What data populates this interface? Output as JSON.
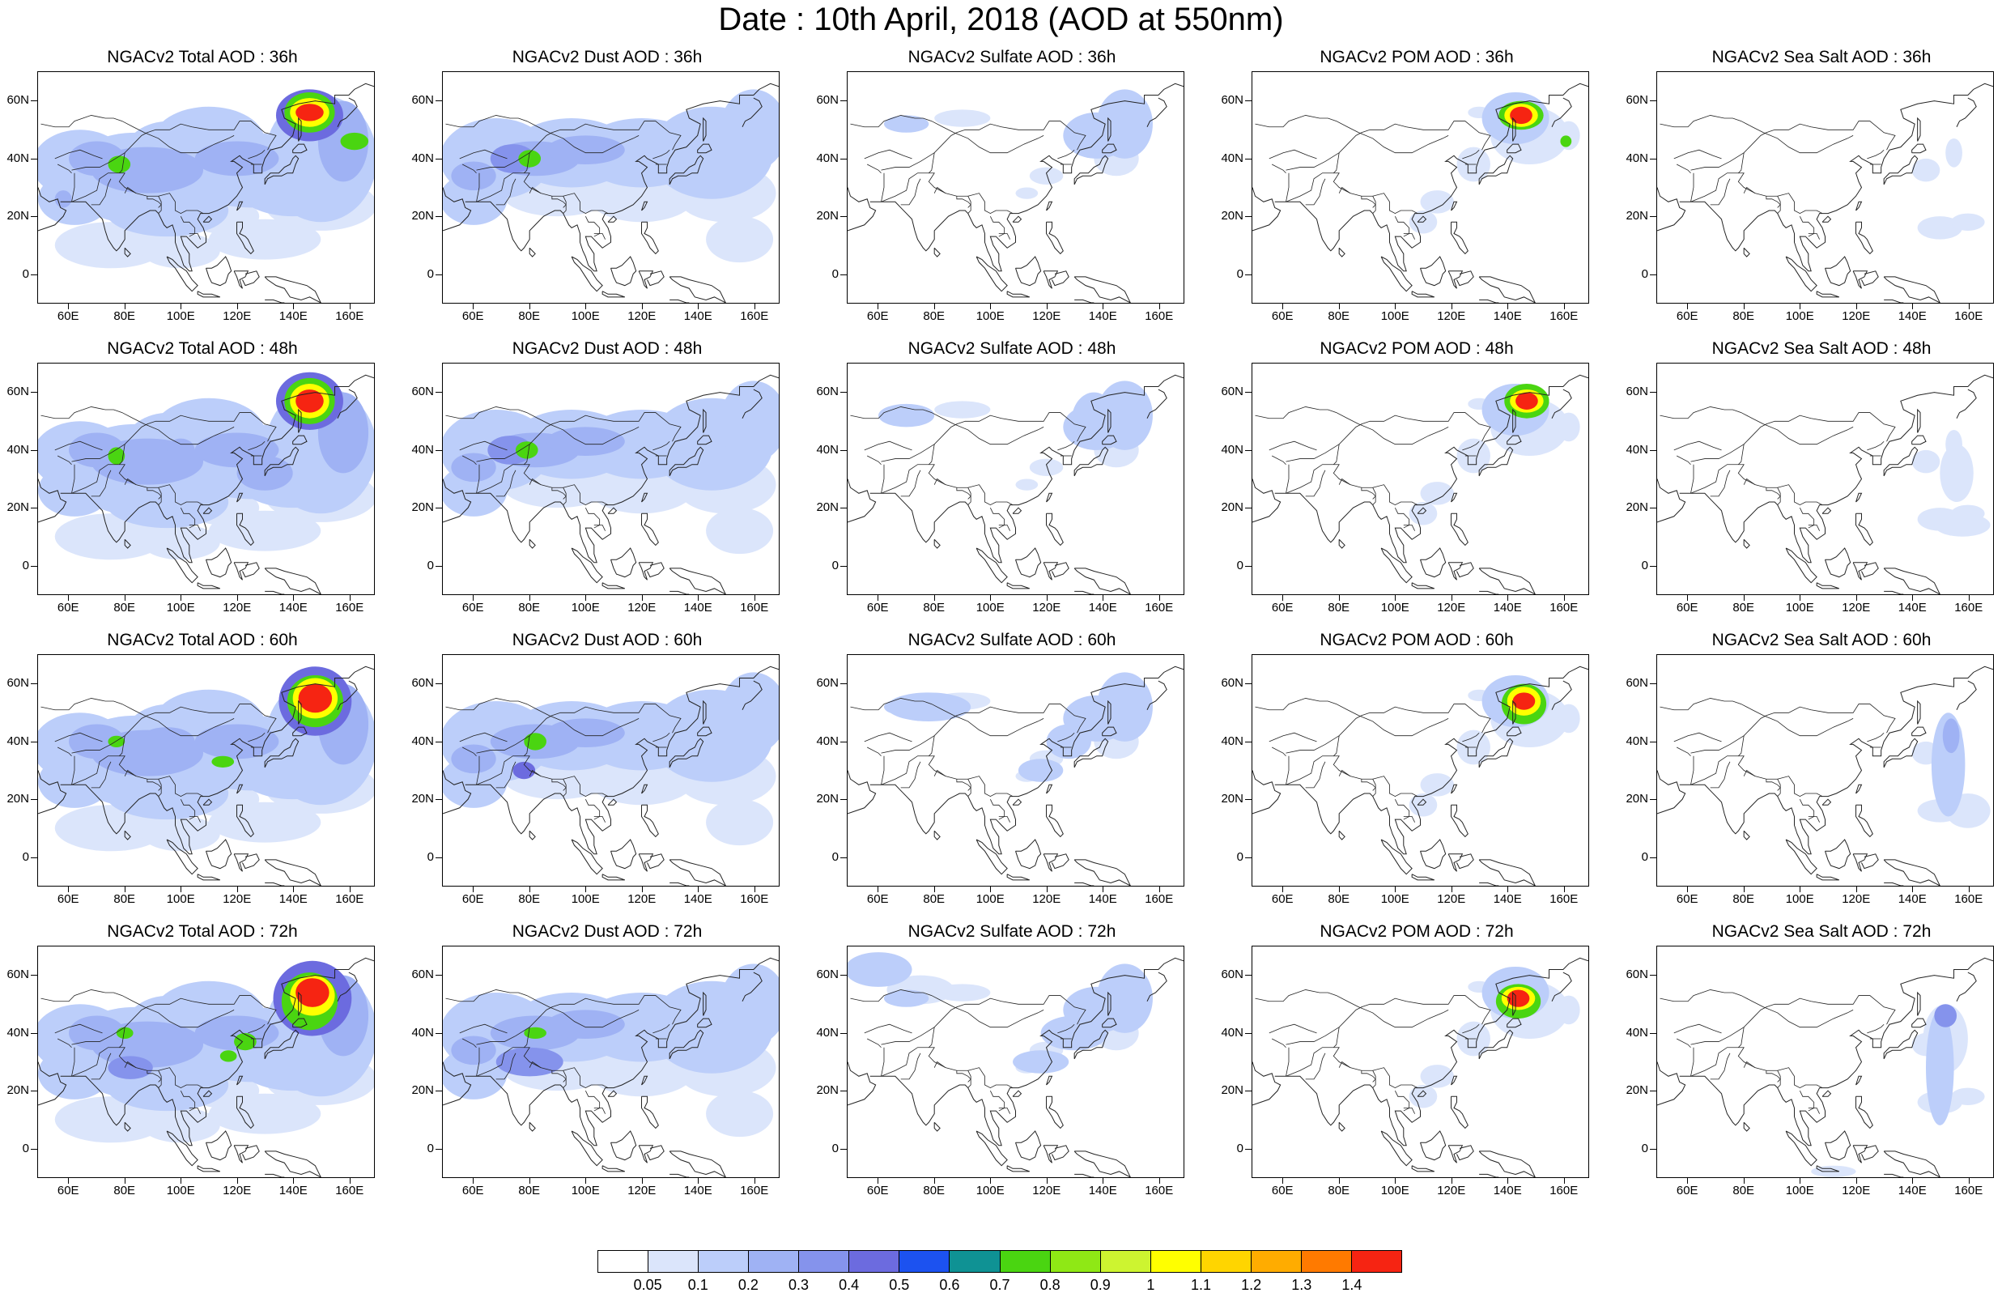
{
  "figure": {
    "title": "Date : 10th April, 2018 (AOD at 550nm)"
  },
  "axes": {
    "lat_ticks": [
      "60N",
      "40N",
      "20N",
      "0"
    ],
    "lon_ticks": [
      "60E",
      "80E",
      "100E",
      "120E",
      "140E",
      "160E"
    ]
  },
  "colorbar": {
    "labels": [
      "0.05",
      "0.1",
      "0.2",
      "0.3",
      "0.4",
      "0.5",
      "0.6",
      "0.7",
      "0.8",
      "0.9",
      "1",
      "1.1",
      "1.2",
      "1.3",
      "1.4"
    ],
    "colors": [
      "#ffffff",
      "#dbe5fb",
      "#bccefa",
      "#9fb2f4",
      "#8593ec",
      "#6c6bdf",
      "#1c52f0",
      "#0f9294",
      "#4ad511",
      "#8fe815",
      "#cdf430",
      "#ffff00",
      "#ffd500",
      "#ffac00",
      "#ff7a00",
      "#f62412"
    ]
  },
  "panels": [
    {
      "title": "NGACv2 Total AOD : 36h",
      "row": 0,
      "col": 0,
      "variable": "total"
    },
    {
      "title": "NGACv2 Dust AOD : 36h",
      "row": 0,
      "col": 1,
      "variable": "dust"
    },
    {
      "title": "NGACv2 Sulfate AOD : 36h",
      "row": 0,
      "col": 2,
      "variable": "sulfate"
    },
    {
      "title": "NGACv2 POM AOD : 36h",
      "row": 0,
      "col": 3,
      "variable": "pom"
    },
    {
      "title": "NGACv2 Sea Salt AOD : 36h",
      "row": 0,
      "col": 4,
      "variable": "seasalt"
    },
    {
      "title": "NGACv2 Total AOD : 48h",
      "row": 1,
      "col": 0,
      "variable": "total"
    },
    {
      "title": "NGACv2 Dust AOD : 48h",
      "row": 1,
      "col": 1,
      "variable": "dust"
    },
    {
      "title": "NGACv2 Sulfate AOD : 48h",
      "row": 1,
      "col": 2,
      "variable": "sulfate"
    },
    {
      "title": "NGACv2 POM AOD : 48h",
      "row": 1,
      "col": 3,
      "variable": "pom"
    },
    {
      "title": "NGACv2 Sea Salt AOD : 48h",
      "row": 1,
      "col": 4,
      "variable": "seasalt"
    },
    {
      "title": "NGACv2 Total AOD : 60h",
      "row": 2,
      "col": 0,
      "variable": "total"
    },
    {
      "title": "NGACv2 Dust AOD : 60h",
      "row": 2,
      "col": 1,
      "variable": "dust"
    },
    {
      "title": "NGACv2 Sulfate AOD : 60h",
      "row": 2,
      "col": 2,
      "variable": "sulfate"
    },
    {
      "title": "NGACv2 POM AOD : 60h",
      "row": 2,
      "col": 3,
      "variable": "pom"
    },
    {
      "title": "NGACv2 Sea Salt AOD : 60h",
      "row": 2,
      "col": 4,
      "variable": "seasalt"
    },
    {
      "title": "NGACv2 Total AOD : 72h",
      "row": 3,
      "col": 0,
      "variable": "total"
    },
    {
      "title": "NGACv2 Dust AOD : 72h",
      "row": 3,
      "col": 1,
      "variable": "dust"
    },
    {
      "title": "NGACv2 Sulfate AOD : 72h",
      "row": 3,
      "col": 2,
      "variable": "sulfate"
    },
    {
      "title": "NGACv2 POM AOD : 72h",
      "row": 3,
      "col": 3,
      "variable": "pom"
    },
    {
      "title": "NGACv2 Sea Salt  AOD : 72h",
      "row": 3,
      "col": 4,
      "variable": "seasalt"
    }
  ]
}
